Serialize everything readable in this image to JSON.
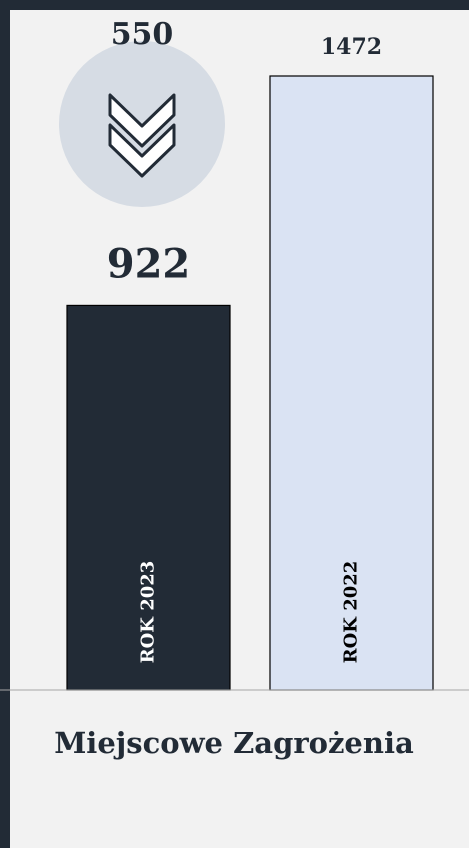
{
  "chart_data": {
    "type": "bar",
    "title": "Miejscowe Zagrożenia",
    "categories": [
      "ROK 2023",
      "ROK 2022"
    ],
    "values": [
      922,
      1472
    ],
    "colors": [
      "#222b36",
      "#dae3f3"
    ],
    "label_colors": [
      "#ffffff",
      "#000000"
    ],
    "difference": 550
  }
}
